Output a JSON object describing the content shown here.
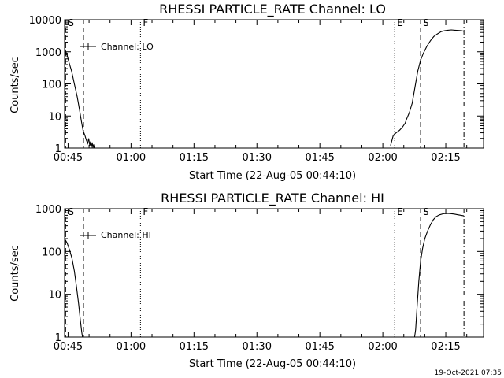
{
  "chart_data": [
    {
      "type": "line",
      "title": "RHESSI PARTICLE_RATE Channel: LO",
      "xlabel": "Start Time (22-Aug-05 00:44:10)",
      "ylabel": "Counts/sec",
      "y_scale": "log",
      "xlim": [
        "00:44:10",
        "02:24:00"
      ],
      "ylim": [
        1,
        10000
      ],
      "x_ticks": [
        "00:45",
        "01:00",
        "01:15",
        "01:30",
        "01:45",
        "02:00",
        "02:15"
      ],
      "y_ticks": [
        {
          "value": 1,
          "label": "1"
        },
        {
          "value": 10,
          "label": "10"
        },
        {
          "value": 100,
          "label": "100"
        },
        {
          "value": 1000,
          "label": "1000"
        },
        {
          "value": 10000,
          "label": "10000"
        }
      ],
      "legend": {
        "entries": [
          "Channel: LO"
        ],
        "placement": "top-left"
      },
      "markers": [
        {
          "label": "S",
          "time": "00:44:25",
          "style": "dashed"
        },
        {
          "time": "00:48:40",
          "style": "dashed"
        },
        {
          "label": "F",
          "time": "01:02:15",
          "style": "dotted"
        },
        {
          "label": "E",
          "time": "02:02:50",
          "style": "dotted"
        },
        {
          "label": "S",
          "time": "02:09:00",
          "style": "dashed"
        },
        {
          "time": "02:19:20",
          "style": "dashdot"
        }
      ],
      "series": [
        {
          "segments": [
            {
              "x": [
                "00:44:10",
                "00:44:45",
                "00:45:15",
                "00:45:50",
                "00:46:30",
                "00:47:10",
                "00:47:45",
                "00:48:10",
                "00:48:35",
                "00:49:00",
                "00:49:20",
                "00:49:40",
                "00:49:55",
                "00:50:10",
                "00:50:20",
                "00:50:30",
                "00:50:45",
                "00:50:55",
                "00:51:05",
                "00:51:15",
                "00:51:25"
              ],
              "y": [
                1300,
                800,
                450,
                250,
                100,
                40,
                15,
                7,
                3.5,
                2.5,
                1.8,
                1.4,
                2.0,
                1.2,
                1.6,
                1.0,
                1.5,
                1.0,
                1.3,
                1.0,
                0.9
              ]
            },
            {
              "x": [
                "02:01:50",
                "02:02:30",
                "02:03:10",
                "02:04:00",
                "02:04:40",
                "02:05:20",
                "02:05:40",
                "02:06:20",
                "02:07:00",
                "02:07:40",
                "02:08:20",
                "02:09:00",
                "02:09:40",
                "02:10:30",
                "02:11:20",
                "02:12:10",
                "02:13:00",
                "02:13:50",
                "02:14:40",
                "02:15:30",
                "02:16:20",
                "02:17:10",
                "02:18:00",
                "02:18:50",
                "02:19:20"
              ],
              "y": [
                1.2,
                2.5,
                3.0,
                3.6,
                4.5,
                6.0,
                8.0,
                13,
                25,
                80,
                250,
                550,
                900,
                1500,
                2200,
                3000,
                3600,
                4200,
                4500,
                4700,
                4800,
                4700,
                4600,
                4500,
                4300
              ]
            }
          ]
        }
      ]
    },
    {
      "type": "line",
      "title": "RHESSI PARTICLE_RATE Channel: HI",
      "xlabel": "Start Time (22-Aug-05 00:44:10)",
      "ylabel": "Counts/sec",
      "y_scale": "log",
      "xlim": [
        "00:44:10",
        "02:24:00"
      ],
      "ylim": [
        1,
        1000
      ],
      "x_ticks": [
        "00:45",
        "01:00",
        "01:15",
        "01:30",
        "01:45",
        "02:00",
        "02:15"
      ],
      "y_ticks": [
        {
          "value": 1,
          "label": "1"
        },
        {
          "value": 10,
          "label": "10"
        },
        {
          "value": 100,
          "label": "100"
        },
        {
          "value": 1000,
          "label": "1000"
        }
      ],
      "legend": {
        "entries": [
          "Channel: HI"
        ],
        "placement": "top-left"
      },
      "markers": [
        {
          "label": "S",
          "time": "00:44:25",
          "style": "dashed"
        },
        {
          "time": "00:48:40",
          "style": "dashed"
        },
        {
          "label": "F",
          "time": "01:02:15",
          "style": "dotted"
        },
        {
          "label": "E",
          "time": "02:02:50",
          "style": "dotted"
        },
        {
          "label": "S",
          "time": "02:09:00",
          "style": "dashed"
        },
        {
          "time": "02:19:20",
          "style": "dashdot"
        }
      ],
      "series": [
        {
          "segments": [
            {
              "x": [
                "00:44:10",
                "00:44:45",
                "00:45:20",
                "00:45:55",
                "00:46:30",
                "00:47:00",
                "00:47:30",
                "00:47:55",
                "00:48:15",
                "00:48:30"
              ],
              "y": [
                200,
                160,
                110,
                70,
                35,
                15,
                6,
                2.5,
                1.3,
                0.9
              ]
            },
            {
              "x": [
                "02:07:30",
                "02:07:50",
                "02:08:10",
                "02:08:35",
                "02:09:00",
                "02:09:30",
                "02:10:00",
                "02:10:40",
                "02:11:20",
                "02:12:00",
                "02:12:40",
                "02:13:30",
                "02:14:20",
                "02:15:10",
                "02:16:00",
                "02:17:00",
                "02:18:00",
                "02:19:20"
              ],
              "y": [
                0.9,
                1.5,
                5,
                20,
                60,
                120,
                200,
                300,
                420,
                550,
                650,
                720,
                760,
                780,
                770,
                750,
                720,
                680
              ]
            }
          ]
        }
      ]
    }
  ],
  "footer": {
    "timestamp": "19-Oct-2021 07:35"
  }
}
